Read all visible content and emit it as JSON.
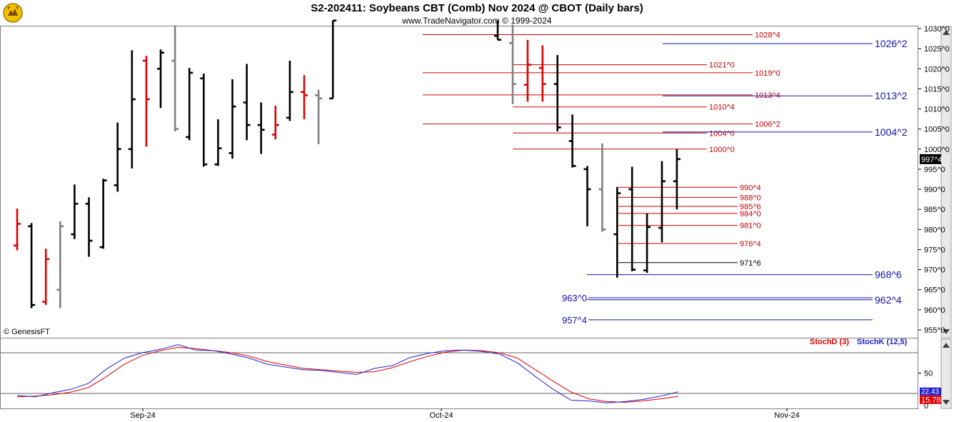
{
  "colors": {
    "up": "#000000",
    "down": "#e00000",
    "neutral": "#808080",
    "red_level": "#cc0000",
    "blue_level": "#1010b0",
    "black_level": "#000000",
    "stoch_d": "#e00000",
    "stoch_k": "#2020d0"
  },
  "icons": {
    "logo": "gold-bull-logo"
  },
  "chart_data": {
    "type": "bar",
    "title": "S2-202411:  Soybeans CBT (Comb) Nov 2024 @ CBOT  (Daily bars)",
    "subtitle": "www.TradeNavigator.com © 1999-2024",
    "watermark": "© GenesisFT",
    "x_labels": [
      "Sep-24",
      "Oct-24",
      "Nov-24"
    ],
    "y_ticks": [
      "1030^0",
      "1025^0",
      "1020^0",
      "1015^0",
      "1010^0",
      "1005^0",
      "1000^0",
      "995^0",
      "990^0",
      "985^0",
      "980^0",
      "975^0",
      "970^0",
      "965^0",
      "960^0",
      "955^0"
    ],
    "ylim": [
      953,
      1032
    ],
    "last_price": "997^4",
    "bars": [
      {
        "h": 985.2,
        "l": 974.8,
        "o": 976.0,
        "c": 981.4,
        "color": "down"
      },
      {
        "h": 981.6,
        "l": 960.4,
        "o": 980.8,
        "c": 961.2,
        "color": "up"
      },
      {
        "h": 975.2,
        "l": 961.2,
        "o": 962.0,
        "c": 972.6,
        "color": "down"
      },
      {
        "h": 982.0,
        "l": 960.4,
        "o": 965.0,
        "c": 980.8,
        "color": "neutral"
      },
      {
        "h": 991.2,
        "l": 977.6,
        "o": 978.8,
        "c": 986.4,
        "color": "up"
      },
      {
        "h": 988.0,
        "l": 973.2,
        "o": 986.4,
        "c": 977.2,
        "color": "up"
      },
      {
        "h": 992.6,
        "l": 975.2,
        "o": 975.6,
        "c": 992.2,
        "color": "up"
      },
      {
        "h": 1006.6,
        "l": 989.4,
        "o": 991.0,
        "c": 1000.0,
        "color": "up"
      },
      {
        "h": 1024.6,
        "l": 995.2,
        "o": 1000.0,
        "c": 1012.4,
        "color": "up"
      },
      {
        "h": 1023.2,
        "l": 1000.6,
        "o": 1022.0,
        "c": 1012.4,
        "color": "down"
      },
      {
        "h": 1024.8,
        "l": 1010.2,
        "o": 1020.0,
        "c": 1024.0,
        "color": "up"
      },
      {
        "h": 1030.8,
        "l": 1004.4,
        "o": 1022.0,
        "c": 1005.0,
        "color": "neutral"
      },
      {
        "h": 1020.2,
        "l": 1002.2,
        "o": 1003.0,
        "c": 1019.0,
        "color": "up"
      },
      {
        "h": 1018.8,
        "l": 995.6,
        "o": 1017.6,
        "c": 996.2,
        "color": "up"
      },
      {
        "h": 1007.4,
        "l": 995.8,
        "o": 996.2,
        "c": 1000.2,
        "color": "up"
      },
      {
        "h": 1017.4,
        "l": 997.6,
        "o": 999.0,
        "c": 1010.6,
        "color": "up"
      },
      {
        "h": 1021.2,
        "l": 1002.2,
        "o": 1011.6,
        "c": 1006.0,
        "color": "up"
      },
      {
        "h": 1011.6,
        "l": 998.8,
        "o": 1006.0,
        "c": 1004.8,
        "color": "up"
      },
      {
        "h": 1010.8,
        "l": 1002.4,
        "o": 1003.6,
        "c": 1006.0,
        "color": "down"
      },
      {
        "h": 1022.0,
        "l": 1007.0,
        "o": 1007.8,
        "c": 1014.2,
        "color": "up"
      },
      {
        "h": 1018.4,
        "l": 1007.4,
        "o": 1014.2,
        "c": 1013.4,
        "color": "down"
      },
      {
        "h": 1014.8,
        "l": 1001.2,
        "o": 1013.4,
        "c": 1012.6,
        "color": "neutral"
      },
      {
        "h": 1032.0,
        "l": 1012.6,
        "o": 1012.6,
        "c": 1032.0,
        "color": "up"
      },
      {
        "h": 1032.0,
        "l": 1027.2,
        "o": 1028.2,
        "c": 1027.2,
        "color": "up"
      },
      {
        "h": 1031.0,
        "l": 1011.2,
        "o": 1026.4,
        "c": 1016.2,
        "color": "neutral"
      },
      {
        "h": 1027.2,
        "l": 1011.8,
        "o": 1016.0,
        "c": 1021.0,
        "color": "down"
      },
      {
        "h": 1025.8,
        "l": 1011.8,
        "o": 1020.2,
        "c": 1016.2,
        "color": "down"
      },
      {
        "h": 1023.4,
        "l": 1004.4,
        "o": 1016.2,
        "c": 1005.4,
        "color": "up"
      },
      {
        "h": 1008.6,
        "l": 995.4,
        "o": 1002.0,
        "c": 995.8,
        "color": "up"
      },
      {
        "h": 995.8,
        "l": 980.8,
        "o": 995.0,
        "c": 990.0,
        "color": "up"
      },
      {
        "h": 1001.4,
        "l": 979.4,
        "o": 990.0,
        "c": 980.0,
        "color": "neutral"
      },
      {
        "h": 990.6,
        "l": 968.0,
        "o": 978.8,
        "c": 989.0,
        "color": "up"
      },
      {
        "h": 995.6,
        "l": 969.6,
        "o": 990.0,
        "c": 970.0,
        "color": "up"
      },
      {
        "h": 984.0,
        "l": 969.2,
        "o": 969.8,
        "c": 980.6,
        "color": "up"
      },
      {
        "h": 997.0,
        "l": 976.8,
        "o": 980.4,
        "c": 992.0,
        "color": "up"
      },
      {
        "h": 1000.0,
        "l": 985.0,
        "o": 992.0,
        "c": 997.5,
        "color": "up"
      }
    ],
    "levels": [
      {
        "label": "1028^4",
        "value": 1028.5,
        "color": "red",
        "x_from": 592
      },
      {
        "label": "1021^0",
        "value": 1021.0,
        "color": "red",
        "x_from": 718
      },
      {
        "label": "1019^0",
        "value": 1019.0,
        "color": "red",
        "x_from": 592
      },
      {
        "label": "1013^4",
        "value": 1013.5,
        "color": "red",
        "x_from": 592
      },
      {
        "label": "1010^4",
        "value": 1010.5,
        "color": "red",
        "x_from": 718
      },
      {
        "label": "1006^2",
        "value": 1006.25,
        "color": "red",
        "x_from": 592
      },
      {
        "label": "1004^0",
        "value": 1004.0,
        "color": "red",
        "x_from": 718
      },
      {
        "label": "1000^0",
        "value": 1000.0,
        "color": "red",
        "x_from": 718
      },
      {
        "label": "990^4",
        "value": 990.5,
        "color": "red",
        "x_from": 866
      },
      {
        "label": "988^0",
        "value": 988.0,
        "color": "red",
        "x_from": 866
      },
      {
        "label": "985^6",
        "value": 985.75,
        "color": "red",
        "x_from": 866
      },
      {
        "label": "984^0",
        "value": 984.0,
        "color": "red",
        "x_from": 866
      },
      {
        "label": "981^0",
        "value": 981.0,
        "color": "red",
        "x_from": 866
      },
      {
        "label": "976^4",
        "value": 976.5,
        "color": "red",
        "x_from": 866
      },
      {
        "label": "971^6",
        "value": 971.75,
        "color": "black",
        "x_from": 866
      },
      {
        "label": "1026^2",
        "value": 1026.25,
        "color": "blue",
        "x_from": 928
      },
      {
        "label": "1013^2",
        "value": 1013.25,
        "color": "blue",
        "x_from": 928
      },
      {
        "label": "1004^2",
        "value": 1004.25,
        "color": "blue",
        "x_from": 928
      },
      {
        "label": "968^6",
        "value": 968.75,
        "color": "blue",
        "x_from": 822
      },
      {
        "label": "962^4",
        "value": 962.5,
        "color": "blue",
        "x_from": 822
      },
      {
        "label": "963^0",
        "value": 963.0,
        "color": "blue",
        "x_from": 822,
        "left_label": true
      },
      {
        "label": "957^4",
        "value": 957.5,
        "color": "blue",
        "x_from": 822,
        "left_label": true
      }
    ],
    "oscillator": {
      "legend_d": "StochD (3)",
      "legend_k": "StochK (12,5)",
      "ylim": [
        0,
        100
      ],
      "y_ticks": [
        "50",
        "0"
      ],
      "ref_lines": [
        80,
        20
      ],
      "last_k": "22.43",
      "last_d": "15.78",
      "k": [
        17,
        15,
        21,
        26,
        35,
        56,
        72,
        80,
        85,
        92,
        84,
        83,
        78,
        72,
        63,
        59,
        55,
        54,
        51,
        48,
        57,
        61,
        73,
        79,
        83,
        84,
        82,
        78,
        65,
        45,
        26,
        10,
        9,
        6,
        8,
        11,
        16,
        22.43
      ],
      "d": [
        15,
        16,
        18,
        22,
        29,
        45,
        63,
        76,
        83,
        88,
        86,
        83,
        80,
        75,
        67,
        62,
        57,
        55,
        53,
        51,
        52,
        58,
        67,
        75,
        81,
        84,
        83,
        80,
        72,
        55,
        38,
        22,
        12,
        8,
        7,
        9,
        12,
        15.78
      ]
    }
  }
}
